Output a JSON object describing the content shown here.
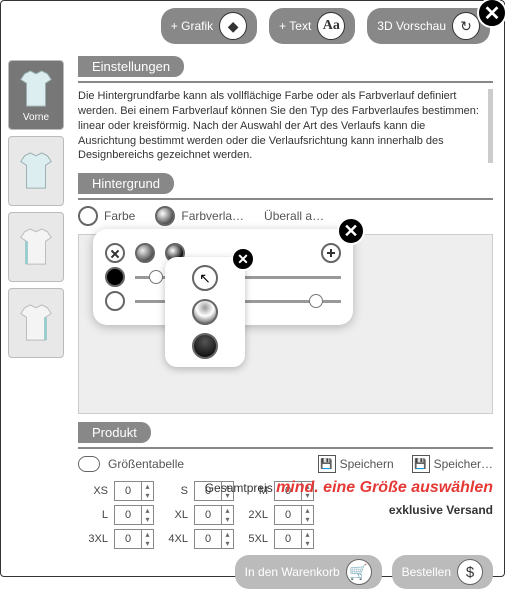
{
  "topbar": {
    "grafik": "+ Grafik",
    "text": "+ Text",
    "vorschau": "3D Vorschau"
  },
  "thumbs": {
    "front_label": "Vorne",
    "shirt_fill": "#dceef0",
    "shirt_stroke": "#9aaeb0"
  },
  "settings": {
    "header": "Einstellungen",
    "desc": "Die Hintergrundfarbe kann als vollflächige Farbe oder als Farbverlauf definiert werden. Bei einem Farbverlauf können Sie den Typ des Farbverlaufes bestimmen: linear oder kreisförmig. Nach der Auswahl der Art des Verlaufs kann die Ausrichtung bestimmt werden oder die Verlaufsrichtung kann innerhalb des Designbereichs gezeichnet werden."
  },
  "hintergrund": {
    "header": "Hintergrund",
    "opt_farbe": "Farbe",
    "opt_verlauf": "Farbverla…",
    "opt_ueberall": "Überall a…",
    "sliders": {
      "s1_knob_pct": 10,
      "s2_knob_pct": 88
    }
  },
  "produkt": {
    "header": "Produkt",
    "sizetable": "Größentabelle",
    "speichern": "Speichern",
    "speichern2": "Speicher…",
    "sizes": [
      "XS",
      "S",
      "M",
      "L",
      "XL",
      "2XL",
      "3XL",
      "4XL",
      "5XL"
    ],
    "size_value": "0",
    "price_label": "Gesamtpreis",
    "price_warn": "mind. eine Größe auswählen",
    "excl": "exklusive Versand",
    "cart": "In den Warenkorb",
    "order": "Bestellen"
  },
  "colors": {
    "accent": "#888888",
    "warn": "#e53935"
  }
}
